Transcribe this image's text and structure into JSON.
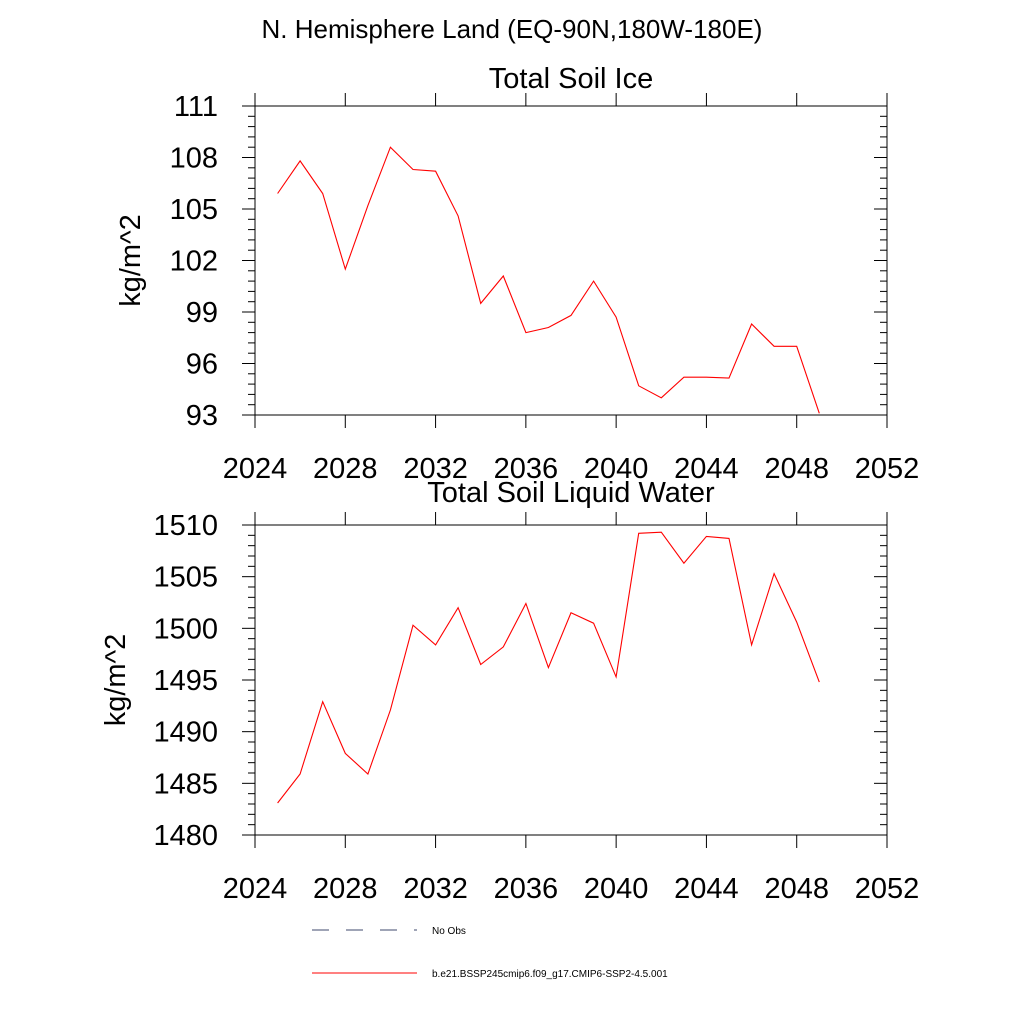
{
  "figure": {
    "suptitle": "N. Hemisphere Land (EQ-90N,180W-180E)"
  },
  "chart_data": [
    {
      "type": "line",
      "title": "Total Soil Ice",
      "ylabel": "kg/m^2",
      "xlabel": "",
      "xlim": [
        2024,
        2052
      ],
      "ylim": [
        93,
        111
      ],
      "xticks": [
        "2024",
        "2028",
        "2032",
        "2036",
        "2040",
        "2044",
        "2048",
        "2052"
      ],
      "yticks": [
        "93",
        "96",
        "99",
        "102",
        "105",
        "108",
        "111"
      ],
      "grid": false,
      "series": [
        {
          "name": "b.e21.BSSP245cmip6.f09_g17.CMIP6-SSP2-4.5.001",
          "color": "#ff0000",
          "x": [
            2025,
            2026,
            2027,
            2028,
            2029,
            2030,
            2031,
            2032,
            2033,
            2034,
            2035,
            2036,
            2037,
            2038,
            2039,
            2040,
            2041,
            2042,
            2043,
            2044,
            2045,
            2046,
            2047,
            2048,
            2049
          ],
          "y": [
            105.9,
            107.8,
            105.9,
            101.5,
            105.2,
            108.6,
            107.3,
            107.2,
            104.6,
            99.5,
            101.1,
            97.8,
            98.1,
            98.8,
            100.8,
            98.7,
            94.7,
            94.0,
            95.2,
            95.2,
            95.15,
            98.3,
            97.0,
            97.0,
            93.1
          ]
        }
      ]
    },
    {
      "type": "line",
      "title": "Total Soil Liquid Water",
      "ylabel": "kg/m^2",
      "xlabel": "",
      "xlim": [
        2024,
        2052
      ],
      "ylim": [
        1480,
        1510
      ],
      "xticks": [
        "2024",
        "2028",
        "2032",
        "2036",
        "2040",
        "2044",
        "2048",
        "2052"
      ],
      "yticks": [
        "1480",
        "1485",
        "1490",
        "1495",
        "1500",
        "1505",
        "1510"
      ],
      "grid": false,
      "series": [
        {
          "name": "b.e21.BSSP245cmip6.f09_g17.CMIP6-SSP2-4.5.001",
          "color": "#ff0000",
          "x": [
            2025,
            2026,
            2027,
            2028,
            2029,
            2030,
            2031,
            2032,
            2033,
            2034,
            2035,
            2036,
            2037,
            2038,
            2039,
            2040,
            2041,
            2042,
            2043,
            2044,
            2045,
            2046,
            2047,
            2048,
            2049
          ],
          "y": [
            1483.1,
            1485.9,
            1492.9,
            1487.9,
            1485.9,
            1492.1,
            1500.3,
            1498.4,
            1502.0,
            1496.5,
            1498.2,
            1502.4,
            1496.2,
            1501.5,
            1500.5,
            1495.3,
            1509.2,
            1509.3,
            1506.3,
            1508.9,
            1508.7,
            1498.4,
            1505.3,
            1500.6,
            1494.8
          ]
        }
      ]
    }
  ],
  "legend": {
    "placement": "bottom",
    "items": [
      {
        "label": "No Obs",
        "style": "dashed",
        "color": "#3f4a6e"
      },
      {
        "label": "b.e21.BSSP245cmip6.f09_g17.CMIP6-SSP2-4.5.001",
        "style": "solid",
        "color": "#ff0000"
      }
    ]
  }
}
